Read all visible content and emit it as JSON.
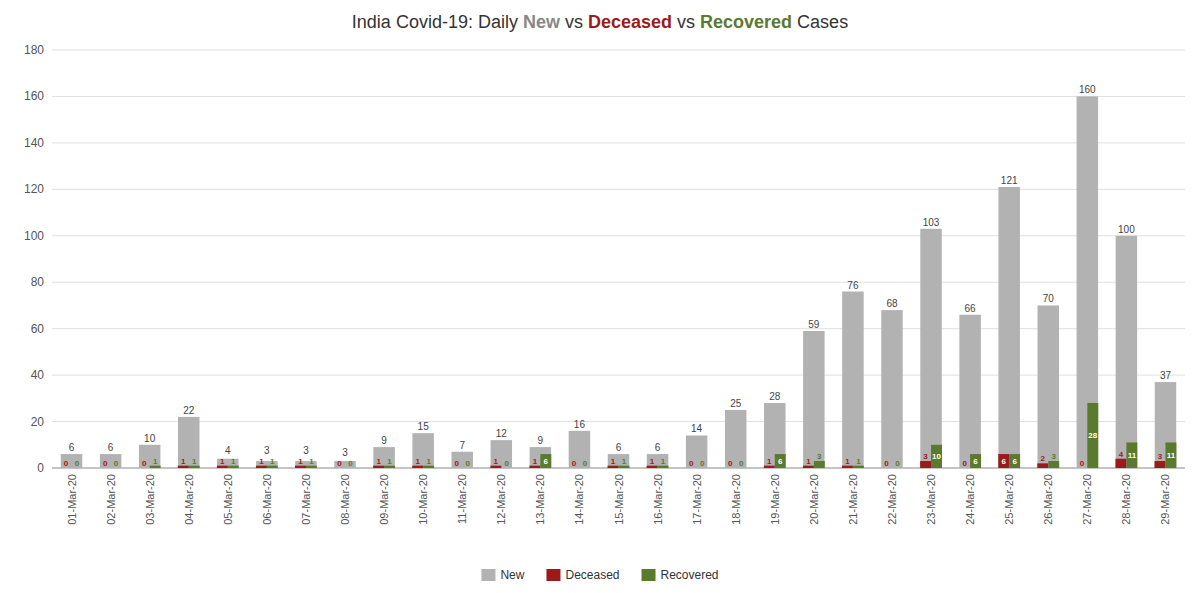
{
  "chart_data": {
    "type": "bar",
    "title": "India Covid-19: Daily New vs Deceased vs Recovered Cases",
    "categories": [
      "01-Mar-20",
      "02-Mar-20",
      "03-Mar-20",
      "04-Mar-20",
      "05-Mar-20",
      "06-Mar-20",
      "07-Mar-20",
      "08-Mar-20",
      "09-Mar-20",
      "10-Mar-20",
      "11-Mar-20",
      "12-Mar-20",
      "13-Mar-20",
      "14-Mar-20",
      "15-Mar-20",
      "16-Mar-20",
      "17-Mar-20",
      "18-Mar-20",
      "19-Mar-20",
      "20-Mar-20",
      "21-Mar-20",
      "22-Mar-20",
      "23-Mar-20",
      "24-Mar-20",
      "25-Mar-20",
      "26-Mar-20",
      "27-Mar-20",
      "28-Mar-20",
      "29-Mar-20"
    ],
    "series": [
      {
        "name": "New",
        "color": "#b2b2b2",
        "values": [
          6,
          6,
          10,
          22,
          4,
          3,
          3,
          3,
          9,
          15,
          7,
          12,
          9,
          16,
          6,
          6,
          14,
          25,
          28,
          59,
          76,
          68,
          103,
          66,
          121,
          70,
          160,
          100,
          37
        ]
      },
      {
        "name": "Deceased",
        "color": "#9b1b1b",
        "values": [
          0,
          0,
          0,
          1,
          1,
          1,
          1,
          0,
          1,
          1,
          0,
          1,
          1,
          0,
          1,
          1,
          0,
          0,
          1,
          1,
          1,
          0,
          3,
          0,
          6,
          2,
          0,
          4,
          3
        ]
      },
      {
        "name": "Recovered",
        "color": "#5a7a2e",
        "values": [
          0,
          0,
          1,
          1,
          1,
          1,
          1,
          0,
          1,
          1,
          0,
          0,
          6,
          0,
          1,
          1,
          0,
          0,
          6,
          3,
          1,
          0,
          10,
          6,
          6,
          3,
          28,
          11,
          11
        ]
      }
    ],
    "ylim": [
      0,
      180
    ],
    "yticks": [
      0,
      20,
      40,
      60,
      80,
      100,
      120,
      140,
      160,
      180
    ],
    "grid": true,
    "legend": "bottom",
    "data_labels": true
  }
}
